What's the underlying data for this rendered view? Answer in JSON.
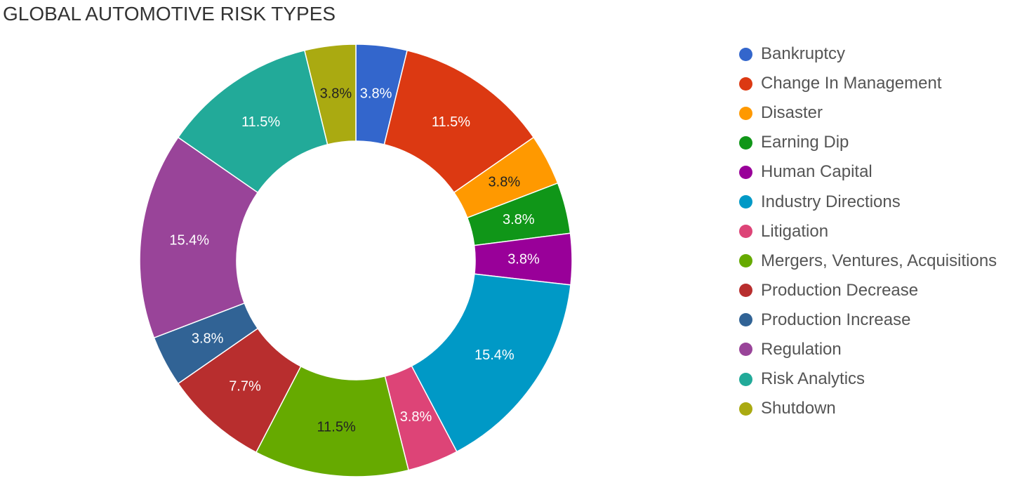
{
  "chart_data": {
    "type": "pie",
    "title": "GLOBAL AUTOMOTIVE RISK TYPES",
    "donut": true,
    "legend_position": "right",
    "slices": [
      {
        "label": "Bankruptcy",
        "value": 3.8,
        "value_label": "3.8%",
        "color": "#3366cc",
        "label_color": "#ffffff"
      },
      {
        "label": "Change In Management",
        "value": 11.5,
        "value_label": "11.5%",
        "color": "#dc3912",
        "label_color": "#ffffff"
      },
      {
        "label": "Disaster",
        "value": 3.8,
        "value_label": "3.8%",
        "color": "#ff9900",
        "label_color": "#222222"
      },
      {
        "label": "Earning Dip",
        "value": 3.8,
        "value_label": "3.8%",
        "color": "#109618",
        "label_color": "#ffffff"
      },
      {
        "label": "Human Capital",
        "value": 3.8,
        "value_label": "3.8%",
        "color": "#990099",
        "label_color": "#ffffff"
      },
      {
        "label": "Industry Directions",
        "value": 15.4,
        "value_label": "15.4%",
        "color": "#0099c6",
        "label_color": "#ffffff"
      },
      {
        "label": "Litigation",
        "value": 3.8,
        "value_label": "3.8%",
        "color": "#dd4477",
        "label_color": "#ffffff"
      },
      {
        "label": "Mergers, Ventures, Acquisitions",
        "value": 11.5,
        "value_label": "11.5%",
        "color": "#66aa00",
        "label_color": "#222222"
      },
      {
        "label": "Production Decrease",
        "value": 7.7,
        "value_label": "7.7%",
        "color": "#b82e2e",
        "label_color": "#ffffff"
      },
      {
        "label": "Production Increase",
        "value": 3.8,
        "value_label": "3.8%",
        "color": "#316395",
        "label_color": "#ffffff"
      },
      {
        "label": "Regulation",
        "value": 15.4,
        "value_label": "15.4%",
        "color": "#994499",
        "label_color": "#ffffff"
      },
      {
        "label": "Risk Analytics",
        "value": 11.5,
        "value_label": "11.5%",
        "color": "#22aa99",
        "label_color": "#ffffff"
      },
      {
        "label": "Shutdown",
        "value": 3.8,
        "value_label": "3.8%",
        "color": "#aaaa11",
        "label_color": "#222222"
      }
    ]
  }
}
